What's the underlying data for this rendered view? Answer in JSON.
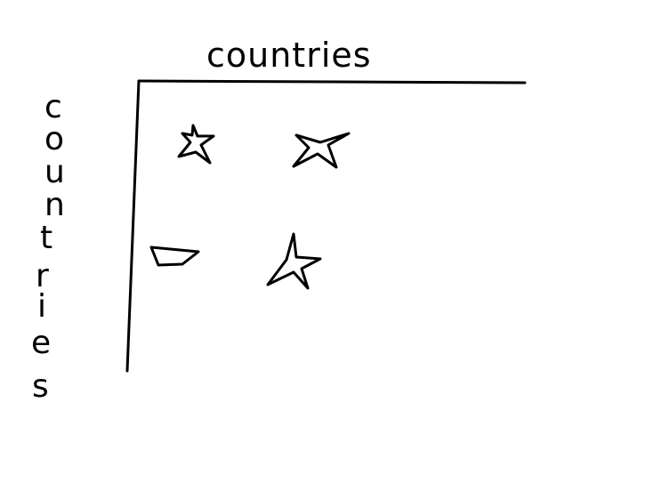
{
  "diagram": {
    "top_axis_label": "countries",
    "side_axis_label": "countries",
    "side_axis_letters": [
      "c",
      "o",
      "u",
      "n",
      "t",
      "r",
      "i",
      "e",
      "s"
    ],
    "stroke_color": "#000000",
    "background_color": "#ffffff",
    "cells": [
      {
        "row": 1,
        "col": 1,
        "shape": "star-icon"
      },
      {
        "row": 1,
        "col": 2,
        "shape": "star-icon"
      },
      {
        "row": 2,
        "col": 1,
        "shape": "trapezoid-icon"
      },
      {
        "row": 2,
        "col": 2,
        "shape": "star-icon"
      }
    ]
  }
}
